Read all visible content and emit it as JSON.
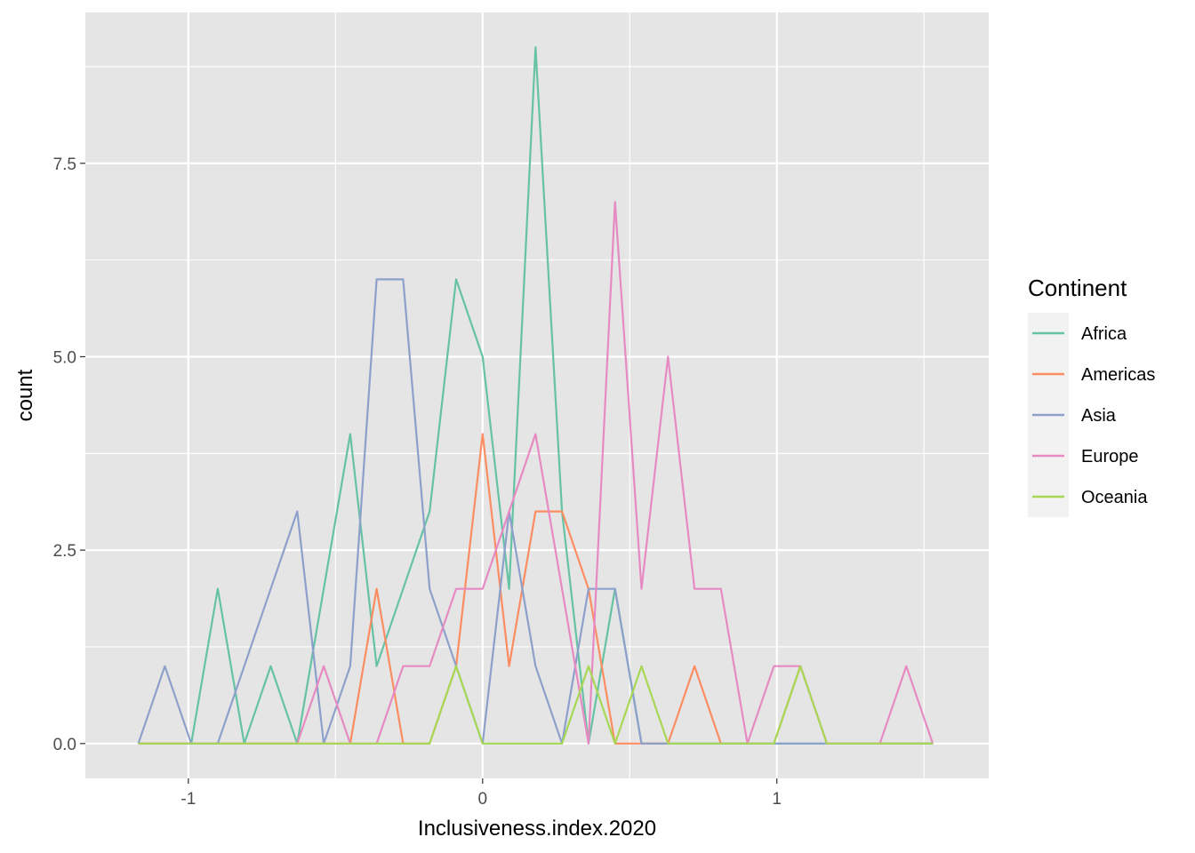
{
  "chart_data": {
    "type": "line",
    "title": "",
    "xlabel": "Inclusiveness.index.2020",
    "ylabel": "count",
    "xlim": [
      -1.35,
      1.72
    ],
    "ylim": [
      -0.45,
      9.45
    ],
    "x_ticks": [
      -1,
      0,
      1
    ],
    "x_tick_labels": [
      "-1",
      "0",
      "1"
    ],
    "y_ticks": [
      0,
      2.5,
      5,
      7.5
    ],
    "y_tick_labels": [
      "0.0",
      "2.5",
      "5.0",
      "7.5"
    ],
    "grid": true,
    "legend": {
      "title": "Continent",
      "placement": "right"
    },
    "x": [
      -1.17,
      -1.08,
      -0.99,
      -0.9,
      -0.81,
      -0.72,
      -0.63,
      -0.54,
      -0.45,
      -0.36,
      -0.27,
      -0.18,
      -0.09,
      0.0,
      0.09,
      0.18,
      0.27,
      0.36,
      0.45,
      0.54,
      0.63,
      0.72,
      0.81,
      0.9,
      0.99,
      1.08,
      1.17,
      1.26,
      1.35,
      1.44,
      1.53
    ],
    "series": [
      {
        "name": "Africa",
        "color": "#66c2a5",
        "values": [
          0,
          0,
          0,
          2,
          0,
          1,
          0,
          2,
          4,
          1,
          2,
          3,
          6,
          5,
          2,
          9,
          3,
          0,
          2,
          0,
          0,
          0,
          0,
          0,
          0,
          0,
          0,
          0,
          0,
          0,
          0
        ]
      },
      {
        "name": "Americas",
        "color": "#fc8d62",
        "values": [
          0,
          0,
          0,
          0,
          0,
          0,
          0,
          0,
          0,
          2,
          0,
          0,
          1,
          4,
          1,
          3,
          3,
          2,
          0,
          0,
          0,
          1,
          0,
          0,
          0,
          1,
          0,
          0,
          0,
          0,
          0
        ]
      },
      {
        "name": "Asia",
        "color": "#8da0cb",
        "values": [
          0,
          1,
          0,
          0,
          1,
          2,
          3,
          0,
          1,
          6,
          6,
          2,
          1,
          0,
          3,
          1,
          0,
          2,
          2,
          0,
          0,
          0,
          0,
          0,
          0,
          0,
          0,
          0,
          0,
          0,
          0
        ]
      },
      {
        "name": "Europe",
        "color": "#e78ac3",
        "values": [
          0,
          0,
          0,
          0,
          0,
          0,
          0,
          1,
          0,
          0,
          1,
          1,
          2,
          2,
          3,
          4,
          2,
          0,
          7,
          2,
          5,
          2,
          2,
          0,
          1,
          1,
          0,
          0,
          0,
          1,
          0
        ]
      },
      {
        "name": "Oceania",
        "color": "#a6d854",
        "values": [
          0,
          0,
          0,
          0,
          0,
          0,
          0,
          0,
          0,
          0,
          0,
          0,
          1,
          0,
          0,
          0,
          0,
          1,
          0,
          1,
          0,
          0,
          0,
          0,
          0,
          1,
          0,
          0,
          0,
          0,
          0
        ]
      }
    ]
  }
}
